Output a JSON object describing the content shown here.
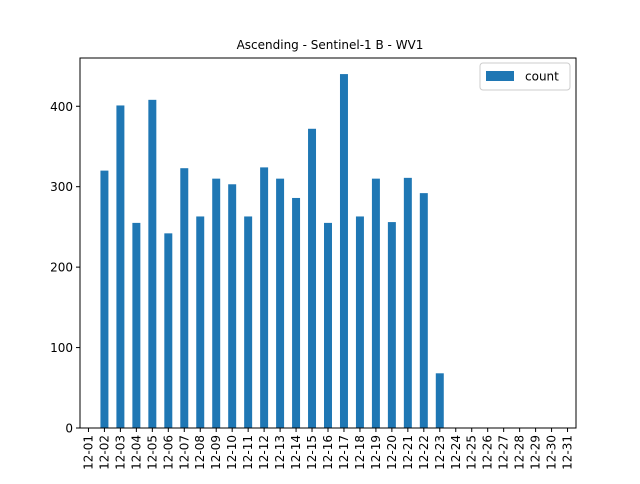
{
  "chart_data": {
    "type": "bar",
    "title": "Ascending - Sentinel-1 B - WV1",
    "xlabel": "",
    "ylabel": "",
    "categories": [
      "12-01",
      "12-02",
      "12-03",
      "12-04",
      "12-05",
      "12-06",
      "12-07",
      "12-08",
      "12-09",
      "12-10",
      "12-11",
      "12-12",
      "12-13",
      "12-14",
      "12-15",
      "12-16",
      "12-17",
      "12-18",
      "12-19",
      "12-20",
      "12-21",
      "12-22",
      "12-23",
      "12-24",
      "12-25",
      "12-26",
      "12-27",
      "12-28",
      "12-29",
      "12-30",
      "12-31"
    ],
    "series": [
      {
        "name": "count",
        "color": "#1f77b4",
        "values": [
          0,
          320,
          401,
          255,
          408,
          242,
          323,
          263,
          310,
          303,
          263,
          324,
          310,
          286,
          372,
          255,
          440,
          263,
          310,
          256,
          311,
          292,
          68,
          0,
          0,
          0,
          0,
          0,
          0,
          0,
          0
        ]
      }
    ],
    "ylim": [
      0,
      460
    ],
    "yticks": [
      0,
      100,
      200,
      300,
      400
    ],
    "grid": false,
    "legend_position": "top-right"
  }
}
